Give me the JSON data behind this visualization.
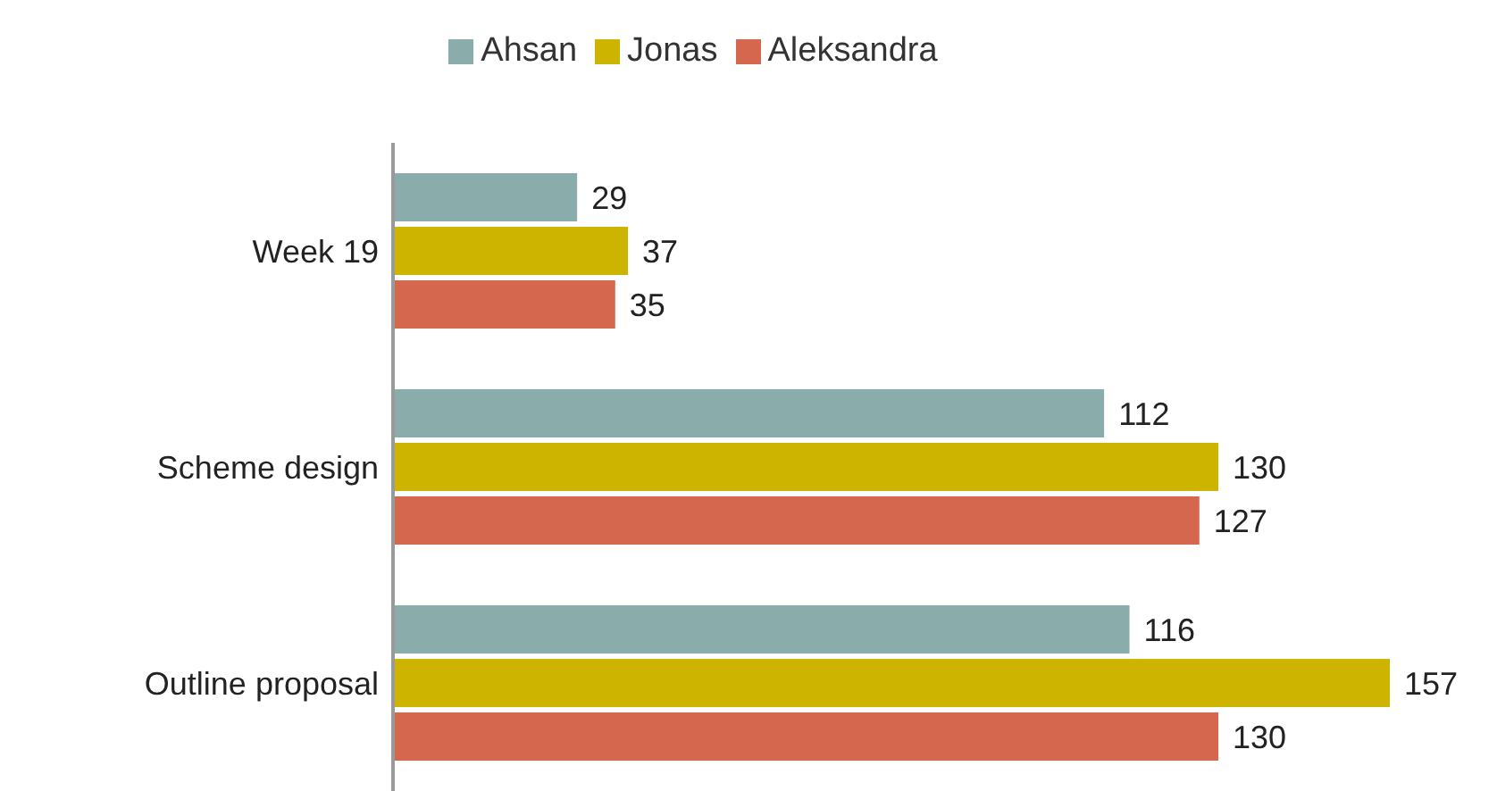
{
  "chart_data": {
    "type": "bar",
    "orientation": "horizontal",
    "categories": [
      "Week 19",
      "Scheme design",
      "Outline proposal"
    ],
    "series": [
      {
        "name": "Ahsan",
        "color": "#8aacaa",
        "values": [
          29,
          112,
          116
        ]
      },
      {
        "name": "Jonas",
        "color": "#cdb400",
        "values": [
          37,
          130,
          157
        ]
      },
      {
        "name": "Aleksandra",
        "color": "#d4674e",
        "values": [
          35,
          127,
          130
        ]
      }
    ],
    "data_labels": true,
    "legend": "top",
    "grid": false
  }
}
